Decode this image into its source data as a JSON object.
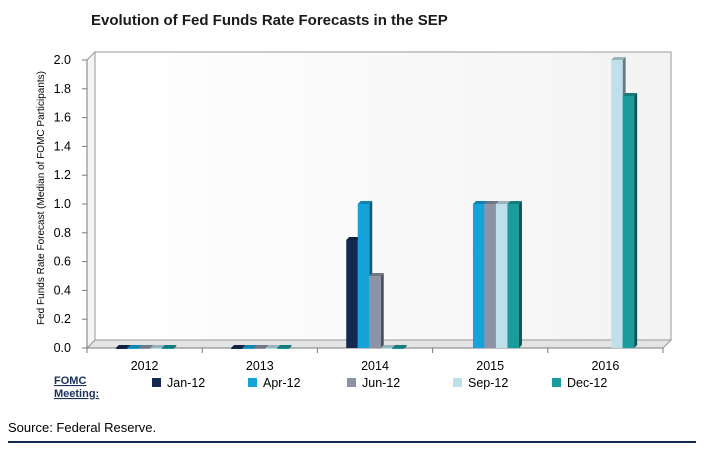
{
  "chart_data": {
    "type": "bar",
    "title": "Evolution of Fed Funds Rate Forecasts in the SEP",
    "ylabel": "Fed Funds Rate Forecast (Median of FOMC Participants)",
    "xlabel": "",
    "ylim": [
      0,
      2.0
    ],
    "yticks": [
      "0.0",
      "0.2",
      "0.4",
      "0.6",
      "0.8",
      "1.0",
      "1.2",
      "1.4",
      "1.6",
      "1.8",
      "2.0"
    ],
    "categories": [
      "2012",
      "2013",
      "2014",
      "2015",
      "2016"
    ],
    "legend_title": "FOMC Meeting:",
    "series": [
      {
        "name": "Jan-12",
        "color": "#13294f",
        "values": [
          0,
          0,
          0.75,
          null,
          null
        ]
      },
      {
        "name": "Apr-12",
        "color": "#16a3d9",
        "values": [
          0,
          0,
          1.0,
          1.0,
          null
        ]
      },
      {
        "name": "Jun-12",
        "color": "#8c93a6",
        "values": [
          0,
          0,
          0.5,
          1.0,
          null
        ]
      },
      {
        "name": "Sep-12",
        "color": "#bfe0ea",
        "values": [
          0,
          0,
          0,
          1.0,
          2.0
        ]
      },
      {
        "name": "Dec-12",
        "color": "#1a9b9c",
        "values": [
          0,
          0,
          0,
          1.0,
          1.75
        ]
      }
    ],
    "source": "Source: Federal Reserve."
  }
}
